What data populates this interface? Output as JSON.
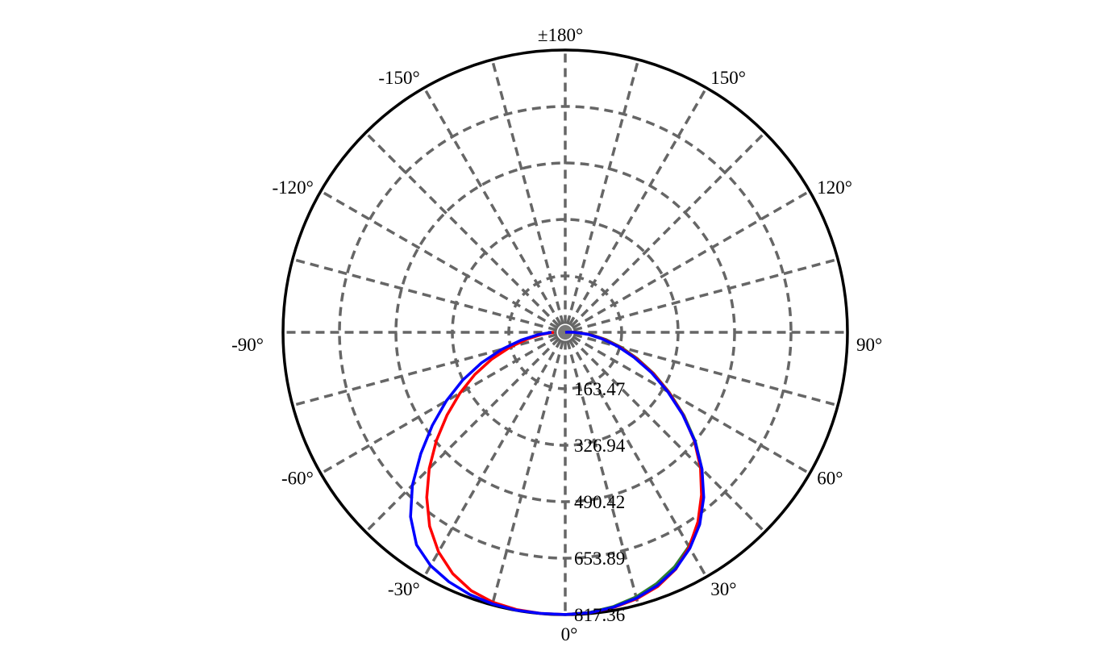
{
  "chart_data": {
    "type": "polar",
    "angle_labels": [
      {
        "deg": 180,
        "text": "±180°"
      },
      {
        "deg": -150,
        "text": "-150°"
      },
      {
        "deg": 150,
        "text": "150°"
      },
      {
        "deg": -120,
        "text": "-120°"
      },
      {
        "deg": 120,
        "text": "120°"
      },
      {
        "deg": -90,
        "text": "-90°"
      },
      {
        "deg": 90,
        "text": "90°"
      },
      {
        "deg": -60,
        "text": "-60°"
      },
      {
        "deg": 60,
        "text": "60°"
      },
      {
        "deg": -30,
        "text": "-30°"
      },
      {
        "deg": 30,
        "text": "30°"
      },
      {
        "deg": 0,
        "text": "0°"
      }
    ],
    "radial_ticks": [
      163.47,
      326.94,
      490.42,
      653.89,
      817.36
    ],
    "radial_tick_labels": [
      "163.47",
      "326.94",
      "490.42",
      "653.89",
      "817.36"
    ],
    "r_max": 817.36,
    "spoke_step_deg": 15,
    "grid": true,
    "series": [
      {
        "color": "#2e7d32",
        "points": [
          [
            0,
            817
          ],
          [
            5,
            814
          ],
          [
            10,
            806
          ],
          [
            15,
            793
          ],
          [
            20,
            774
          ],
          [
            25,
            749
          ],
          [
            30,
            716
          ],
          [
            35,
            674
          ],
          [
            40,
            621
          ],
          [
            45,
            560
          ],
          [
            50,
            492
          ],
          [
            55,
            420
          ],
          [
            60,
            348
          ],
          [
            65,
            283
          ],
          [
            70,
            222
          ],
          [
            75,
            168
          ],
          [
            80,
            119
          ],
          [
            85,
            75
          ],
          [
            90,
            33
          ],
          [
            95,
            5
          ],
          [
            180,
            0
          ]
        ]
      },
      {
        "color": "#ff0000",
        "points": [
          [
            -90,
            33
          ],
          [
            -85,
            68
          ],
          [
            -80,
            111
          ],
          [
            -75,
            165
          ],
          [
            -70,
            226
          ],
          [
            -65,
            289
          ],
          [
            -60,
            352
          ],
          [
            -55,
            418
          ],
          [
            -50,
            487
          ],
          [
            -45,
            557
          ],
          [
            -40,
            624
          ],
          [
            -35,
            685
          ],
          [
            -30,
            734
          ],
          [
            -25,
            771
          ],
          [
            -20,
            796
          ],
          [
            -15,
            809
          ],
          [
            -10,
            815
          ],
          [
            -5,
            817
          ],
          [
            0,
            817
          ],
          [
            5,
            815
          ],
          [
            10,
            809
          ],
          [
            15,
            799
          ],
          [
            20,
            783
          ],
          [
            25,
            757
          ],
          [
            30,
            718
          ],
          [
            35,
            670
          ],
          [
            40,
            614
          ],
          [
            45,
            554
          ],
          [
            50,
            488
          ],
          [
            55,
            417
          ],
          [
            60,
            346
          ],
          [
            65,
            280
          ],
          [
            70,
            218
          ],
          [
            75,
            163
          ],
          [
            80,
            113
          ],
          [
            85,
            70
          ],
          [
            90,
            30
          ],
          [
            95,
            5
          ],
          [
            180,
            0
          ]
        ]
      },
      {
        "color": "#0000ff",
        "points": [
          [
            -90,
            40
          ],
          [
            -85,
            80
          ],
          [
            -80,
            130
          ],
          [
            -75,
            190
          ],
          [
            -70,
            258
          ],
          [
            -65,
            328
          ],
          [
            -60,
            398
          ],
          [
            -55,
            470
          ],
          [
            -50,
            546
          ],
          [
            -45,
            626
          ],
          [
            -40,
            697
          ],
          [
            -35,
            751
          ],
          [
            -30,
            780
          ],
          [
            -25,
            797
          ],
          [
            -20,
            808
          ],
          [
            -15,
            814
          ],
          [
            -10,
            817
          ],
          [
            -5,
            817
          ],
          [
            0,
            817
          ],
          [
            5,
            815
          ],
          [
            10,
            808
          ],
          [
            15,
            797
          ],
          [
            20,
            780
          ],
          [
            25,
            756
          ],
          [
            30,
            722
          ],
          [
            35,
            679
          ],
          [
            40,
            624
          ],
          [
            45,
            560
          ],
          [
            50,
            490
          ],
          [
            55,
            415
          ],
          [
            60,
            342
          ],
          [
            65,
            275
          ],
          [
            70,
            212
          ],
          [
            75,
            158
          ],
          [
            80,
            108
          ],
          [
            85,
            66
          ],
          [
            90,
            28
          ],
          [
            95,
            5
          ],
          [
            180,
            0
          ]
        ]
      }
    ]
  }
}
